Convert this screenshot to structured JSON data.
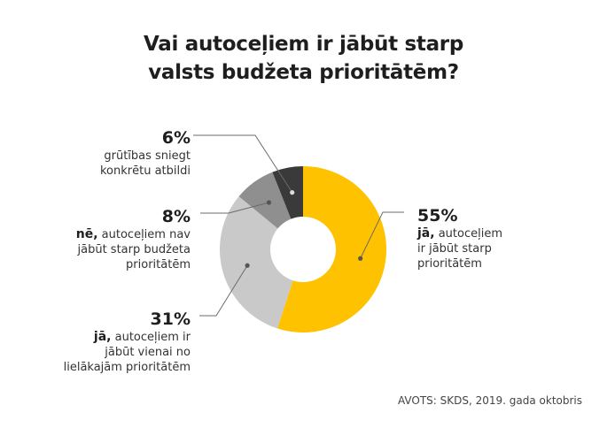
{
  "chart_data": {
    "type": "pie",
    "title_lines": [
      "Vai autoceļiem ir jābūt starp",
      "valsts budžeta prioritātēm?"
    ],
    "slices": [
      {
        "value": 55,
        "label": "55%",
        "key": "jā,",
        "desc": [
          "autoceļiem",
          "ir jābūt starp",
          "prioritātēm"
        ],
        "color": "#FFC200"
      },
      {
        "value": 31,
        "label": "31%",
        "key": "jā,",
        "desc": [
          "autoceļiem ir",
          "jābūt vienai no",
          "lielākajām prioritātēm"
        ],
        "color": "#C9C9C9"
      },
      {
        "value": 8,
        "label": "8%",
        "key": "nē,",
        "desc": [
          "autoceļiem nav",
          "jābūt starp budžeta",
          "prioritātēm"
        ],
        "color": "#8F8F8F"
      },
      {
        "value": 6,
        "label": "6%",
        "key": "",
        "desc": [
          "grūtības sniegt",
          "konkrētu atbildi"
        ],
        "color": "#3A3A3A"
      }
    ],
    "source": "AVOTS: SKDS, 2019. gada oktobris"
  }
}
